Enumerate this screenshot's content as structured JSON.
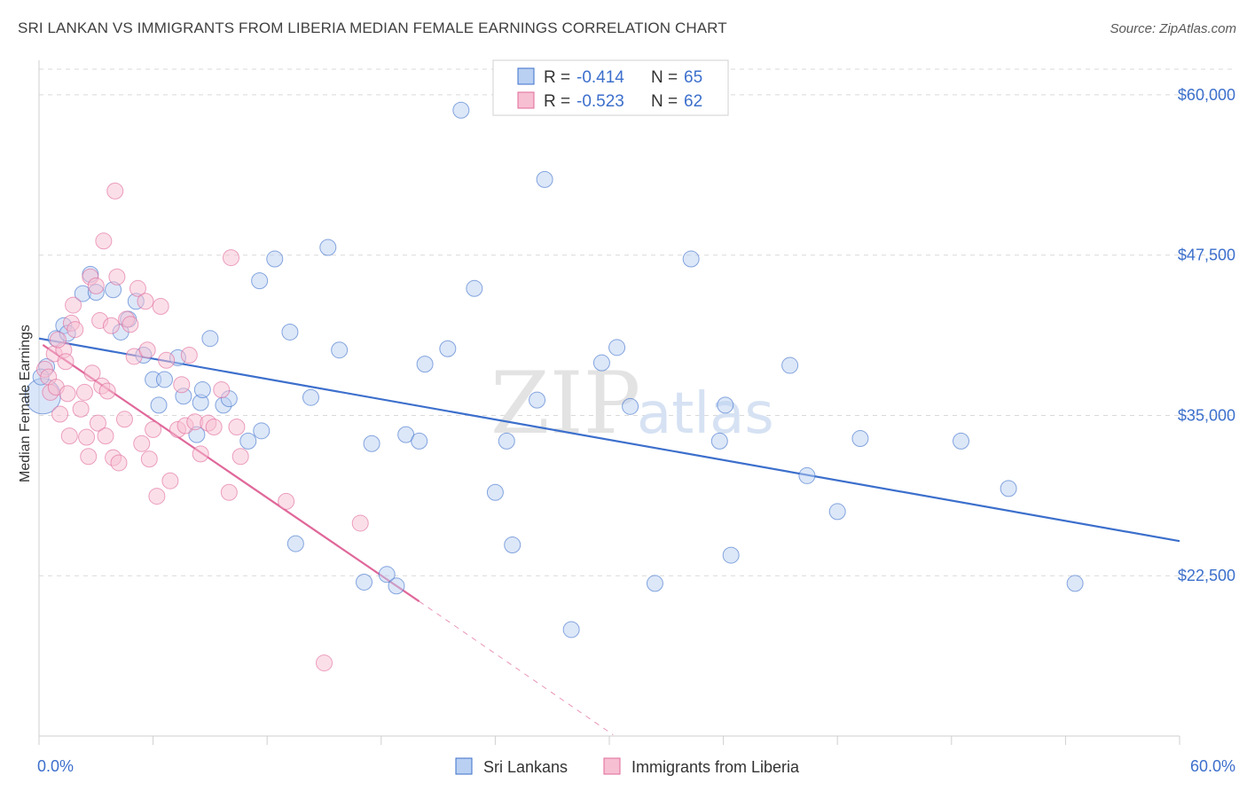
{
  "title": "SRI LANKAN VS IMMIGRANTS FROM LIBERIA MEDIAN FEMALE EARNINGS CORRELATION CHART",
  "source": "Source: ZipAtlas.com",
  "watermark": {
    "zip": "ZIP",
    "atlas": "atlas"
  },
  "colors": {
    "blue": "#3c6fcc",
    "blue_fill": "#b9d0f2",
    "pink": "#e0689a",
    "pink_fill": "#f7bfd2",
    "grid": "#d9d9d9"
  },
  "legend": {
    "rows": [
      {
        "r_label": "R = ",
        "r_value": "-0.414",
        "n_label": "N = ",
        "n_value": "65"
      },
      {
        "r_label": "R = ",
        "r_value": "-0.523",
        "n_label": "N = ",
        "n_value": "62"
      }
    ]
  },
  "chart_data": {
    "type": "scatter",
    "title": "SRI LANKAN VS IMMIGRANTS FROM LIBERIA MEDIAN FEMALE EARNINGS CORRELATION CHART",
    "xlabel": "",
    "ylabel": "Median Female Earnings",
    "xlim": [
      0,
      60
    ],
    "ylim": [
      10000,
      62000
    ],
    "x_tick_labels": [
      "0.0%",
      "60.0%"
    ],
    "y_ticks": [
      22500,
      35000,
      47500,
      60000
    ],
    "y_tick_labels": [
      "$22,500",
      "$35,000",
      "$47,500",
      "$60,000"
    ],
    "grid": true,
    "legend_placement": "top-center",
    "series": [
      {
        "name": "Sri Lankans",
        "color": "#3c6fcc",
        "trend": {
          "x": [
            0,
            60
          ],
          "y": [
            41000,
            25200
          ]
        },
        "points": [
          [
            0.2,
            36500
          ],
          [
            0.4,
            38800
          ],
          [
            0.9,
            41000
          ],
          [
            1.3,
            42000
          ],
          [
            1.5,
            41400
          ],
          [
            2.3,
            44500
          ],
          [
            2.7,
            46000
          ],
          [
            3.0,
            44600
          ],
          [
            3.9,
            44800
          ],
          [
            4.3,
            41500
          ],
          [
            4.7,
            42500
          ],
          [
            5.1,
            43900
          ],
          [
            5.5,
            39700
          ],
          [
            6.0,
            37800
          ],
          [
            6.3,
            35800
          ],
          [
            6.6,
            37800
          ],
          [
            7.3,
            39500
          ],
          [
            7.6,
            36500
          ],
          [
            8.3,
            33500
          ],
          [
            8.5,
            36000
          ],
          [
            8.6,
            37000
          ],
          [
            9.0,
            41000
          ],
          [
            9.7,
            35800
          ],
          [
            10.0,
            36300
          ],
          [
            11.0,
            33000
          ],
          [
            11.6,
            45500
          ],
          [
            11.7,
            33800
          ],
          [
            12.4,
            47200
          ],
          [
            13.2,
            41500
          ],
          [
            13.5,
            25000
          ],
          [
            14.3,
            36400
          ],
          [
            15.2,
            48100
          ],
          [
            15.8,
            40100
          ],
          [
            17.1,
            22000
          ],
          [
            17.5,
            32800
          ],
          [
            18.3,
            22600
          ],
          [
            18.8,
            21700
          ],
          [
            19.3,
            33500
          ],
          [
            20.0,
            33000
          ],
          [
            20.3,
            39000
          ],
          [
            21.5,
            40200
          ],
          [
            22.2,
            58800
          ],
          [
            22.9,
            44900
          ],
          [
            24.0,
            29000
          ],
          [
            24.6,
            33000
          ],
          [
            24.9,
            24900
          ],
          [
            26.2,
            36200
          ],
          [
            26.6,
            53400
          ],
          [
            28.0,
            18300
          ],
          [
            29.6,
            39100
          ],
          [
            30.4,
            40300
          ],
          [
            31.1,
            35700
          ],
          [
            32.4,
            21900
          ],
          [
            34.3,
            47200
          ],
          [
            35.8,
            33000
          ],
          [
            36.1,
            35800
          ],
          [
            36.4,
            24100
          ],
          [
            39.5,
            38900
          ],
          [
            40.4,
            30300
          ],
          [
            42.0,
            27500
          ],
          [
            43.2,
            33200
          ],
          [
            48.5,
            33000
          ],
          [
            51.0,
            29300
          ],
          [
            54.5,
            21900
          ],
          [
            0.1,
            38000
          ]
        ]
      },
      {
        "name": "Immigrants from Liberia",
        "color": "#e0689a",
        "trend": {
          "x": [
            0.2,
            20
          ],
          "y": [
            40500,
            20500
          ]
        },
        "trend_extension": {
          "x": [
            20,
            30.2
          ],
          "y": [
            20500,
            10100
          ]
        },
        "points": [
          [
            0.3,
            38600
          ],
          [
            0.5,
            38000
          ],
          [
            0.6,
            36800
          ],
          [
            0.8,
            39800
          ],
          [
            0.9,
            37200
          ],
          [
            1.1,
            35100
          ],
          [
            1.3,
            40100
          ],
          [
            1.4,
            39200
          ],
          [
            1.5,
            36700
          ],
          [
            1.6,
            33400
          ],
          [
            1.7,
            42200
          ],
          [
            1.8,
            43600
          ],
          [
            1.9,
            41700
          ],
          [
            2.2,
            35500
          ],
          [
            2.4,
            36800
          ],
          [
            2.5,
            33300
          ],
          [
            2.6,
            31800
          ],
          [
            2.7,
            45800
          ],
          [
            2.8,
            38300
          ],
          [
            3.0,
            45100
          ],
          [
            3.1,
            34400
          ],
          [
            3.2,
            42400
          ],
          [
            3.3,
            37300
          ],
          [
            3.4,
            48600
          ],
          [
            3.5,
            33400
          ],
          [
            3.6,
            36900
          ],
          [
            3.8,
            42000
          ],
          [
            3.9,
            31700
          ],
          [
            4.0,
            52500
          ],
          [
            4.1,
            45800
          ],
          [
            4.2,
            31300
          ],
          [
            4.5,
            34700
          ],
          [
            4.6,
            42500
          ],
          [
            4.8,
            42100
          ],
          [
            5.0,
            39600
          ],
          [
            5.2,
            44900
          ],
          [
            5.4,
            32800
          ],
          [
            5.6,
            43900
          ],
          [
            5.7,
            40100
          ],
          [
            5.8,
            31600
          ],
          [
            6.0,
            33900
          ],
          [
            6.2,
            28700
          ],
          [
            6.4,
            43500
          ],
          [
            6.7,
            39300
          ],
          [
            6.9,
            29900
          ],
          [
            7.3,
            33900
          ],
          [
            7.5,
            37400
          ],
          [
            7.7,
            34200
          ],
          [
            7.9,
            39700
          ],
          [
            8.2,
            34500
          ],
          [
            8.5,
            32000
          ],
          [
            8.9,
            34400
          ],
          [
            9.2,
            34100
          ],
          [
            9.6,
            37000
          ],
          [
            10.0,
            29000
          ],
          [
            10.1,
            47300
          ],
          [
            10.4,
            34100
          ],
          [
            10.6,
            31800
          ],
          [
            13.0,
            28300
          ],
          [
            15.0,
            15700
          ],
          [
            16.9,
            26600
          ],
          [
            1.0,
            40900
          ]
        ]
      }
    ]
  },
  "bottom_legend": [
    {
      "label": "Sri Lankans"
    },
    {
      "label": "Immigrants from Liberia"
    }
  ]
}
